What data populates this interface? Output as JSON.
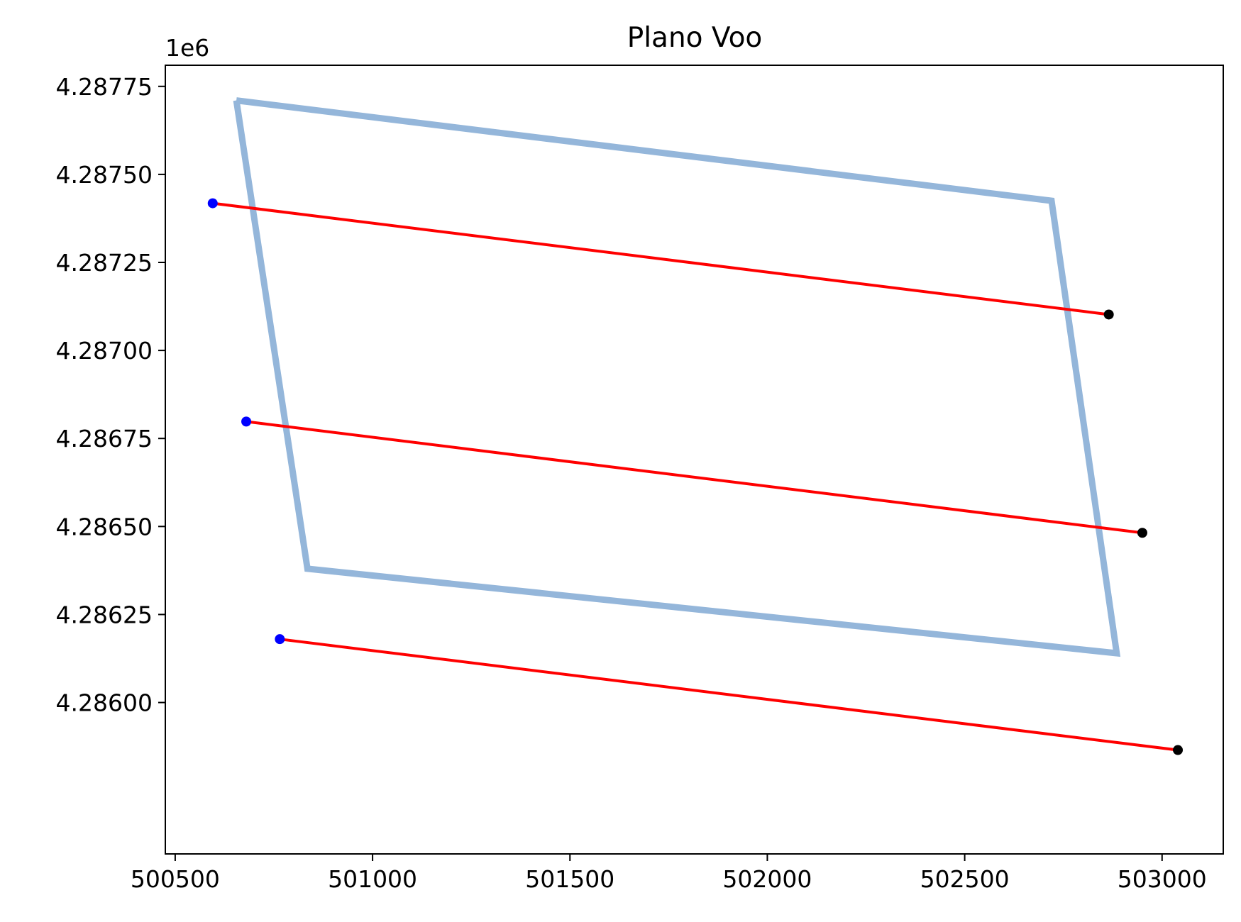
{
  "chart_data": {
    "type": "line",
    "title": "Plano Voo",
    "xlabel": "",
    "ylabel": "",
    "y_offset_label": "1e6",
    "xlim": [
      500475,
      503155
    ],
    "ylim": [
      4285570,
      4287810
    ],
    "x_ticks": [
      500500,
      501000,
      501500,
      502000,
      502500,
      503000
    ],
    "x_tick_labels": [
      "500500",
      "501000",
      "501500",
      "502000",
      "502500",
      "503000"
    ],
    "y_ticks": [
      4286000,
      4286250,
      4286500,
      4286750,
      4287000,
      4287250,
      4287500,
      4287750
    ],
    "y_tick_labels": [
      "4.28600",
      "4.28625",
      "4.28650",
      "4.28675",
      "4.28700",
      "4.28725",
      "4.28750",
      "4.28775"
    ],
    "grid": false,
    "boundary": {
      "color": "#94b6da",
      "points": [
        {
          "x": 500655,
          "y": 4287710
        },
        {
          "x": 502720,
          "y": 4287425
        },
        {
          "x": 502885,
          "y": 4286140
        },
        {
          "x": 500835,
          "y": 4286380
        },
        {
          "x": 500655,
          "y": 4287710
        }
      ]
    },
    "lines": [
      {
        "color": "#ff0000",
        "start": {
          "x": 500595,
          "y": 4287418
        },
        "end": {
          "x": 502865,
          "y": 4287102
        }
      },
      {
        "color": "#ff0000",
        "start": {
          "x": 500680,
          "y": 4286798
        },
        "end": {
          "x": 502950,
          "y": 4286482
        }
      },
      {
        "color": "#ff0000",
        "start": {
          "x": 500765,
          "y": 4286180
        },
        "end": {
          "x": 503040,
          "y": 4285865
        }
      }
    ],
    "start_marker_color": "#0000ff",
    "end_marker_color": "#000000"
  }
}
